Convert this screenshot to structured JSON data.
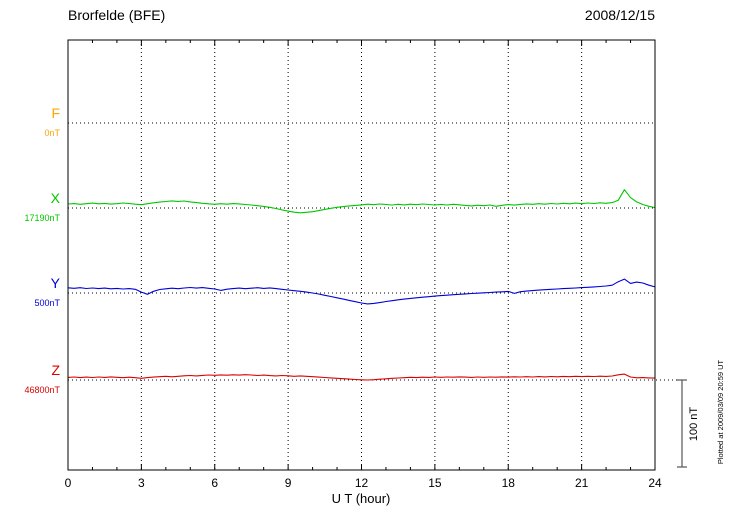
{
  "header": {
    "station": "Brorfelde (BFE)",
    "date": "2008/12/15"
  },
  "axis": {
    "xlabel": "U T (hour)",
    "x_ticks": [
      0,
      3,
      6,
      9,
      12,
      15,
      18,
      21,
      24
    ],
    "x_range": [
      0,
      24
    ]
  },
  "scalebar": {
    "label": "100 nT",
    "nT": 100
  },
  "footer_note": "Plotted at 2009/03/09 20:59 UT",
  "chart_data": {
    "type": "line",
    "title": "Brorfelde (BFE) magnetogram",
    "subtitle": "2008/12/15",
    "xlabel": "U T (hour)",
    "x_range": [
      0,
      24
    ],
    "x_step_hours": 0.25,
    "grid": "dotted vertical lines every 3 hours, dotted horizontal baseline per component",
    "scale_nT_per_division": 100,
    "series": [
      {
        "name": "F",
        "baseline_label": "0nT",
        "baseline_nT": 0,
        "color": "#FFA500",
        "offsets_nT": []
      },
      {
        "name": "X",
        "baseline_label": "17190nT",
        "baseline_nT": 17190,
        "color": "#00C800",
        "offsets_nT": [
          4.6,
          5.1,
          4.2,
          5.0,
          5.6,
          4.8,
          5.3,
          4.5,
          5.0,
          5.8,
          5.2,
          4.4,
          3.8,
          4.9,
          6.0,
          6.8,
          7.5,
          8.2,
          7.6,
          8.0,
          7.0,
          6.2,
          5.4,
          4.8,
          4.2,
          4.9,
          4.4,
          5.1,
          4.7,
          4.0,
          3.4,
          2.6,
          1.8,
          0.8,
          -0.6,
          -2.2,
          -3.6,
          -4.8,
          -5.5,
          -5.0,
          -4.2,
          -3.0,
          -1.6,
          -0.4,
          0.8,
          1.6,
          2.4,
          3.0,
          3.6,
          4.4,
          3.8,
          4.6,
          4.0,
          3.4,
          4.2,
          3.6,
          4.4,
          3.8,
          4.6,
          4.0,
          3.4,
          4.1,
          3.5,
          4.3,
          3.7,
          3.0,
          2.4,
          3.2,
          2.6,
          3.4,
          2.0,
          3.1,
          3.9,
          3.3,
          4.1,
          4.7,
          4.2,
          5.0,
          4.4,
          5.2,
          4.6,
          5.4,
          4.8,
          5.6,
          5.0,
          5.8,
          5.2,
          6.0,
          5.4,
          6.2,
          9.0,
          21.0,
          12.0,
          7.0,
          4.0,
          2.0,
          0.5
        ]
      },
      {
        "name": "Y",
        "baseline_label": "500nT",
        "baseline_nT": 500,
        "color": "#0000DC",
        "offsets_nT": [
          6.0,
          5.4,
          6.1,
          5.2,
          5.8,
          5.0,
          5.6,
          4.8,
          5.3,
          4.6,
          5.1,
          4.2,
          1.0,
          -1.5,
          2.0,
          4.0,
          4.8,
          5.5,
          4.9,
          5.7,
          6.3,
          5.6,
          6.2,
          5.4,
          4.6,
          3.0,
          4.4,
          5.0,
          5.6,
          4.9,
          5.5,
          6.1,
          5.3,
          5.9,
          5.1,
          4.3,
          3.5,
          2.7,
          1.9,
          1.0,
          0.0,
          -1.2,
          -2.6,
          -4.0,
          -5.5,
          -7.0,
          -8.5,
          -10.0,
          -11.5,
          -12.5,
          -12.0,
          -11.0,
          -9.8,
          -8.8,
          -7.8,
          -7.0,
          -6.2,
          -5.5,
          -4.8,
          -4.2,
          -3.6,
          -3.0,
          -2.5,
          -2.0,
          -1.5,
          -1.0,
          -0.6,
          -0.2,
          0.2,
          0.6,
          1.0,
          1.4,
          1.8,
          -0.5,
          1.5,
          2.2,
          2.8,
          3.3,
          3.8,
          4.2,
          4.6,
          5.0,
          5.4,
          5.8,
          6.2,
          6.6,
          7.0,
          7.5,
          8.0,
          9.0,
          13.0,
          16.0,
          11.0,
          12.5,
          11.5,
          9.0,
          7.0
        ]
      },
      {
        "name": "Z",
        "baseline_label": "46800nT",
        "baseline_nT": 46800,
        "color": "#DC0000",
        "offsets_nT": [
          3.0,
          3.4,
          2.8,
          3.3,
          2.9,
          3.5,
          3.0,
          3.6,
          3.1,
          2.7,
          3.2,
          2.6,
          2.0,
          2.8,
          3.3,
          3.8,
          4.2,
          3.7,
          4.3,
          4.8,
          5.2,
          4.7,
          5.3,
          5.8,
          5.4,
          5.9,
          5.5,
          6.0,
          5.6,
          6.1,
          5.7,
          5.2,
          5.6,
          5.1,
          4.7,
          5.2,
          4.8,
          4.3,
          4.7,
          4.2,
          3.8,
          3.3,
          2.9,
          2.4,
          2.0,
          1.5,
          1.0,
          0.6,
          0.2,
          0.0,
          0.4,
          0.9,
          1.4,
          1.9,
          2.3,
          2.7,
          3.1,
          2.8,
          3.2,
          3.0,
          3.4,
          3.1,
          3.5,
          3.2,
          3.6,
          3.3,
          3.0,
          3.4,
          3.1,
          3.5,
          3.2,
          3.6,
          3.3,
          3.7,
          3.4,
          3.8,
          3.5,
          3.9,
          3.6,
          4.0,
          3.7,
          4.1,
          3.8,
          4.2,
          3.9,
          4.3,
          4.0,
          4.4,
          4.1,
          4.6,
          6.0,
          6.8,
          3.5,
          2.5,
          2.8,
          2.4,
          2.2
        ]
      }
    ]
  }
}
